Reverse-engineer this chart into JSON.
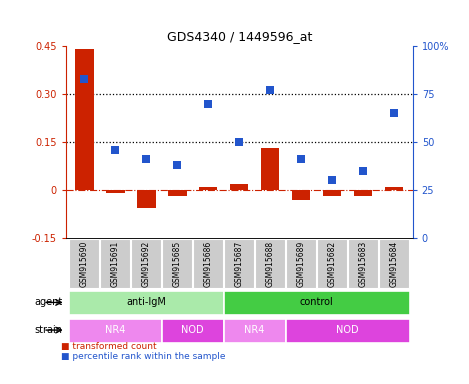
{
  "title": "GDS4340 / 1449596_at",
  "samples": [
    "GSM915690",
    "GSM915691",
    "GSM915692",
    "GSM915685",
    "GSM915686",
    "GSM915687",
    "GSM915688",
    "GSM915689",
    "GSM915682",
    "GSM915683",
    "GSM915684"
  ],
  "red_values": [
    0.44,
    -0.01,
    -0.055,
    -0.02,
    0.01,
    0.02,
    0.13,
    -0.03,
    -0.02,
    -0.02,
    0.01
  ],
  "blue_percentile": [
    83,
    46,
    41,
    38,
    70,
    50,
    77,
    41,
    30,
    35,
    65
  ],
  "ylim_left": [
    -0.15,
    0.45
  ],
  "ylim_right": [
    0,
    100
  ],
  "yticks_left": [
    -0.15,
    0.0,
    0.15,
    0.3,
    0.45
  ],
  "ytick_labels_left": [
    "-0.15",
    "0",
    "0.15",
    "0.30",
    "0.45"
  ],
  "yticks_right": [
    0,
    25,
    50,
    75,
    100
  ],
  "ytick_labels_right": [
    "0",
    "25",
    "50",
    "75",
    "100%"
  ],
  "hlines": [
    0.15,
    0.3
  ],
  "red_color": "#cc2200",
  "blue_color": "#2255cc",
  "agent_groups": [
    {
      "label": "anti-IgM",
      "start": 0,
      "end": 5,
      "color": "#aaeaaa"
    },
    {
      "label": "control",
      "start": 5,
      "end": 11,
      "color": "#44cc44"
    }
  ],
  "strain_groups": [
    {
      "label": "NR4",
      "start": 0,
      "end": 3,
      "color": "#ee88ee"
    },
    {
      "label": "NOD",
      "start": 3,
      "end": 5,
      "color": "#dd44dd"
    },
    {
      "label": "NR4",
      "start": 5,
      "end": 7,
      "color": "#ee88ee"
    },
    {
      "label": "NOD",
      "start": 7,
      "end": 11,
      "color": "#dd44dd"
    }
  ],
  "bar_width": 0.6,
  "marker_size": 40,
  "agent_label": "agent",
  "strain_label": "strain",
  "sample_box_color": "#cccccc",
  "sample_text_color": "black",
  "sample_fontsize": 5.5,
  "legend_labels": [
    "transformed count",
    "percentile rank within the sample"
  ],
  "legend_fontsize": 6.5
}
